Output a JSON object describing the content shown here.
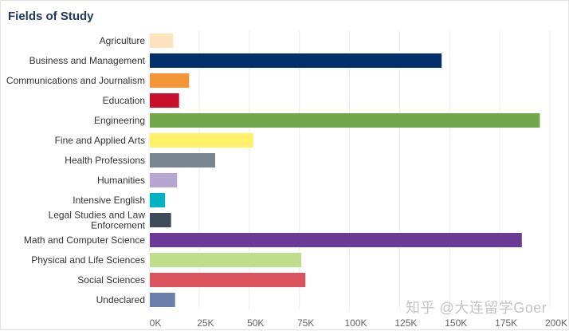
{
  "chart_data": {
    "type": "bar",
    "orientation": "horizontal",
    "title": "Fields of Study",
    "categories": [
      "Agriculture",
      "Business and Management",
      "Communications and Journalism",
      "Education",
      "Engineering",
      "Fine and Applied Arts",
      "Health Professions",
      "Humanities",
      "Intensive English",
      "Legal Studies and Law Enforcement",
      "Math and Computer Science",
      "Physical and Life Sciences",
      "Social Sciences",
      "Undeclared"
    ],
    "category_label_lines": [
      [
        "Agriculture"
      ],
      [
        "Business and Management"
      ],
      [
        "Communications and Journalism"
      ],
      [
        "Education"
      ],
      [
        "Engineering"
      ],
      [
        "Fine and Applied Arts"
      ],
      [
        "Health Professions"
      ],
      [
        "Humanities"
      ],
      [
        "Intensive English"
      ],
      [
        "Legal Studies and Law",
        "Enforcement"
      ],
      [
        "Math and Computer Science"
      ],
      [
        "Physical and Life Sciences"
      ],
      [
        "Social Sciences"
      ],
      [
        "Undeclared"
      ]
    ],
    "values": [
      12000,
      146000,
      20000,
      15000,
      195000,
      52000,
      33000,
      14000,
      8000,
      11000,
      186000,
      76000,
      78000,
      13000
    ],
    "colors": [
      "#fde3bd",
      "#002f6c",
      "#f29637",
      "#c8102e",
      "#71a84b",
      "#fff16a",
      "#7a868f",
      "#b8a6d2",
      "#00b4c4",
      "#3d4b5b",
      "#6b3a97",
      "#c0dd8c",
      "#dc545e",
      "#6a7fab"
    ],
    "xlim": [
      0,
      200000
    ],
    "ticks": [
      0,
      25000,
      50000,
      75000,
      100000,
      125000,
      150000,
      175000,
      200000
    ],
    "tick_labels": [
      "0K",
      "25K",
      "50K",
      "75K",
      "100K",
      "125K",
      "150K",
      "175K",
      "200K"
    ],
    "grid": true,
    "legend": "none"
  },
  "watermark": "知乎 @大连留学Goer"
}
